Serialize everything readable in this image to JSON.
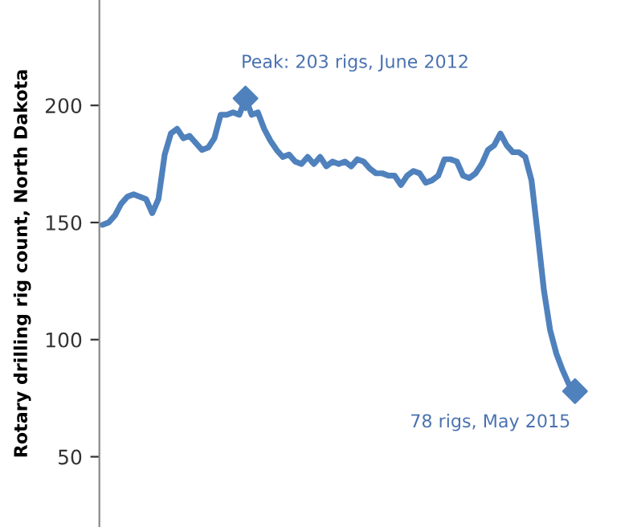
{
  "chart_data": {
    "type": "line",
    "ylabel": "Rotary drilling rig count, North Dakota",
    "categories": [
      null,
      null,
      null,
      null,
      null,
      null,
      null,
      null,
      null,
      null,
      null,
      null,
      null,
      null,
      null,
      null,
      null,
      null,
      null,
      null,
      null,
      null,
      null,
      null,
      null,
      null,
      null,
      null,
      null,
      null,
      null,
      null,
      null,
      null,
      null,
      null,
      null,
      null,
      null,
      null,
      null,
      null,
      null,
      null,
      null,
      null,
      null,
      null,
      null,
      null,
      null,
      null,
      null,
      null,
      null,
      null,
      null,
      null,
      null,
      null,
      null,
      null,
      null,
      null,
      null,
      null,
      null,
      null,
      null,
      null,
      null,
      null,
      null,
      null,
      null,
      null,
      null
    ],
    "series": [
      {
        "color": "#4f81bd",
        "marker": "none",
        "values": [
          149,
          150,
          153,
          158,
          161,
          162,
          161,
          160,
          154,
          160,
          179,
          188,
          190,
          186,
          187,
          184,
          181,
          182,
          186,
          196,
          196,
          197,
          196,
          203,
          196,
          197,
          190,
          185,
          181,
          178,
          179,
          176,
          175,
          178,
          175,
          178,
          174,
          176,
          175,
          176,
          174,
          177,
          176,
          173,
          171,
          171,
          170,
          170,
          166,
          170,
          172,
          171,
          167,
          168,
          170,
          177,
          177,
          176,
          170,
          169,
          171,
          175,
          181,
          183,
          188,
          183,
          180,
          180,
          178,
          168,
          145,
          121,
          104,
          94,
          87,
          81,
          78
        ]
      },
      {
        "type": "scatter",
        "color": "#4f81bd",
        "marker": "diamond",
        "values": [
          null,
          null,
          null,
          null,
          null,
          null,
          null,
          null,
          null,
          null,
          null,
          null,
          null,
          null,
          null,
          null,
          null,
          null,
          null,
          null,
          null,
          null,
          null,
          203,
          null,
          null,
          null,
          null,
          null,
          null,
          null,
          null,
          null,
          null,
          null,
          null,
          null,
          null,
          null,
          null,
          null,
          null,
          null,
          null,
          null,
          null,
          null,
          null,
          null,
          null,
          null,
          null,
          null,
          null,
          null,
          null,
          null,
          null,
          null,
          null,
          null,
          null,
          null,
          null,
          null,
          null,
          null,
          null,
          null,
          null,
          null,
          null,
          null,
          null,
          null,
          null,
          78
        ]
      }
    ],
    "annotations": [
      "Peak: 203 rigs, June 2012",
      "78 rigs, May 2015"
    ],
    "ylim": [
      20,
      245
    ],
    "yticks": [
      50,
      100,
      150,
      200
    ],
    "tick_labels": "y",
    "grid": false,
    "legend": false
  }
}
